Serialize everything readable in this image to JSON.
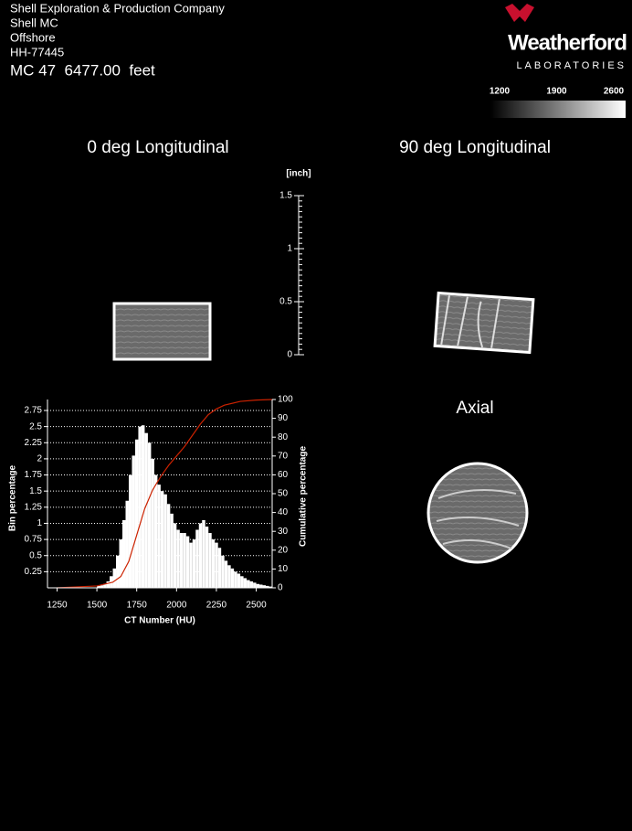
{
  "header": {
    "lines": [
      "Shell Exploration & Production Company",
      "Shell MC",
      "Offshore",
      "HH-77445"
    ],
    "depth": "MC 47  6477.00  feet"
  },
  "logo": {
    "name": "Weatherford",
    "subtitle": "LABORATORIES"
  },
  "colorbar": {
    "ticks": [
      1200,
      1900,
      2600
    ]
  },
  "views": {
    "longitudinal_0": "0 deg Longitudinal",
    "longitudinal_90": "90 deg Longitudinal",
    "axial": "Axial"
  },
  "ruler": {
    "unit": "[inch]",
    "ticks": [
      0,
      0.5,
      1,
      1.5
    ]
  },
  "chart_data": {
    "type": "histogram",
    "xlabel": "CT Number (HU)",
    "ylabel": "Bin percentage",
    "y2label": "Cumulative percentage",
    "color": "#ffffff",
    "bins": [
      1500,
      1520,
      1540,
      1560,
      1580,
      1600,
      1620,
      1640,
      1660,
      1680,
      1700,
      1720,
      1740,
      1760,
      1780,
      1800,
      1820,
      1840,
      1860,
      1880,
      1900,
      1920,
      1940,
      1960,
      1980,
      2000,
      2020,
      2040,
      2060,
      2080,
      2100,
      2120,
      2140,
      2160,
      2180,
      2200,
      2220,
      2240,
      2260,
      2280,
      2300,
      2320,
      2340,
      2360,
      2380,
      2400,
      2420,
      2440,
      2460,
      2480,
      2500,
      2520,
      2540,
      2560,
      2580,
      2600
    ],
    "values": [
      0.03,
      0.04,
      0.06,
      0.1,
      0.18,
      0.3,
      0.5,
      0.75,
      1.05,
      1.35,
      1.75,
      2.05,
      2.3,
      2.5,
      2.52,
      2.4,
      2.25,
      2.0,
      1.75,
      1.6,
      1.5,
      1.45,
      1.3,
      1.15,
      1.0,
      0.9,
      0.85,
      0.85,
      0.8,
      0.7,
      0.75,
      0.9,
      1.0,
      1.05,
      0.95,
      0.85,
      0.75,
      0.7,
      0.62,
      0.5,
      0.42,
      0.35,
      0.3,
      0.25,
      0.22,
      0.18,
      0.15,
      0.12,
      0.1,
      0.08,
      0.06,
      0.05,
      0.04,
      0.03,
      0.02
    ],
    "cumulative": {
      "axis": "y2",
      "color": "#cc2200",
      "x": [
        1250,
        1500,
        1600,
        1650,
        1700,
        1750,
        1800,
        1850,
        1900,
        1950,
        2000,
        2050,
        2100,
        2150,
        2200,
        2250,
        2300,
        2400,
        2500,
        2600
      ],
      "values": [
        0,
        1,
        3,
        6,
        14,
        28,
        42,
        52,
        59,
        65,
        70,
        75,
        81,
        87,
        92,
        95,
        97,
        99,
        99.7,
        100
      ]
    },
    "xlim": [
      1190,
      2600
    ],
    "xticks": [
      1250,
      1500,
      1750,
      2000,
      2250,
      2500
    ],
    "ylim": [
      0,
      2.92
    ],
    "yticks": [
      0.25,
      0.5,
      0.75,
      1,
      1.25,
      1.5,
      1.75,
      2,
      2.25,
      2.5,
      2.75
    ],
    "y2lim": [
      0,
      100
    ],
    "y2ticks": [
      0,
      10,
      20,
      30,
      40,
      50,
      60,
      70,
      80,
      90,
      100
    ],
    "grid": true
  }
}
